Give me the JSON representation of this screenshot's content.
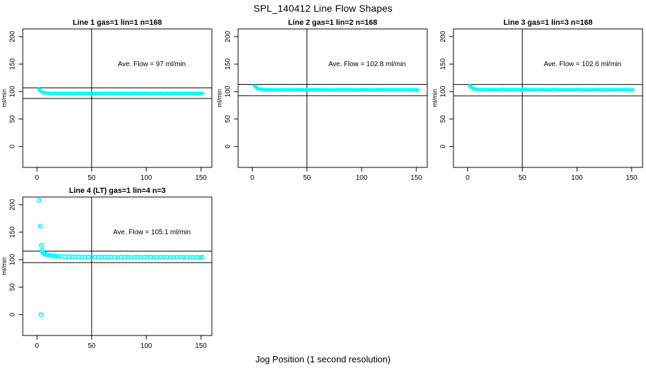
{
  "title": "SPL_140412  Line Flow Shapes",
  "xlabel": "Jog Position (1 second resolution)",
  "colors": {
    "points": "#00ffff",
    "axis": "#000000",
    "background": "#ffffff"
  },
  "chart_data": {
    "type": "scatter",
    "grid": "off",
    "legend": "none",
    "panels": [
      {
        "title": "Line 1 gas=1 lin=1 n=168",
        "annotation": "Ave. Flow =  97  ml/min",
        "ave_flow": 97,
        "ylabel": "ml/min",
        "xticks": [
          0,
          50,
          100,
          150
        ],
        "yticks": [
          0,
          50,
          100,
          150,
          200
        ],
        "xlim": [
          -13,
          160
        ],
        "ylim": [
          -38,
          214
        ],
        "vline": 50,
        "hlines": [
          87.3,
          106.7
        ],
        "style": "band",
        "x": [
          2,
          5,
          8,
          11,
          14,
          17,
          20,
          23,
          26,
          29,
          32,
          35,
          38,
          41,
          44,
          47,
          50,
          53,
          56,
          59,
          62,
          65,
          68,
          71,
          74,
          77,
          80,
          83,
          86,
          89,
          92,
          95,
          98,
          101,
          104,
          107,
          110,
          113,
          116,
          119,
          122,
          125,
          128,
          131,
          134,
          137,
          140,
          143,
          146,
          149,
          151
        ],
        "y": [
          103.5,
          98.6,
          97.3,
          96.9,
          96.6,
          97.0,
          96.5,
          96.8,
          96.4,
          96.9,
          96.6,
          96.3,
          96.8,
          96.5,
          96.9,
          96.4,
          96.7,
          96.5,
          96.8,
          96.3,
          96.6,
          96.9,
          96.5,
          96.7,
          96.4,
          96.8,
          96.6,
          96.3,
          96.7,
          96.5,
          96.9,
          96.4,
          96.6,
          96.8,
          96.5,
          96.3,
          96.7,
          96.9,
          96.4,
          96.6,
          96.5,
          96.8,
          96.3,
          96.7,
          96.5,
          96.9,
          96.6,
          96.4,
          96.8,
          96.5,
          96.6
        ]
      },
      {
        "title": "Line 2 gas=1 lin=2 n=168",
        "annotation": "Ave. Flow =  102.8  ml/min",
        "ave_flow": 102.8,
        "ylabel": "ml/min",
        "xticks": [
          0,
          50,
          100,
          150
        ],
        "yticks": [
          0,
          50,
          100,
          150,
          200
        ],
        "xlim": [
          -13,
          160
        ],
        "ylim": [
          -38,
          214
        ],
        "vline": 50,
        "hlines": [
          92.5,
          113.1
        ],
        "style": "band",
        "x": [
          2,
          5,
          8,
          11,
          14,
          17,
          20,
          23,
          26,
          29,
          32,
          35,
          38,
          41,
          44,
          47,
          50,
          53,
          56,
          59,
          62,
          65,
          68,
          71,
          74,
          77,
          80,
          83,
          86,
          89,
          92,
          95,
          98,
          101,
          104,
          107,
          110,
          113,
          116,
          119,
          122,
          125,
          128,
          131,
          134,
          137,
          140,
          143,
          146,
          149,
          151
        ],
        "y": [
          110.0,
          105.0,
          103.8,
          103.4,
          103.1,
          103.3,
          102.9,
          103.2,
          102.8,
          103.1,
          102.9,
          103.3,
          102.8,
          103.0,
          103.2,
          102.7,
          103.1,
          102.9,
          103.2,
          102.8,
          103.0,
          103.3,
          102.9,
          103.1,
          102.7,
          103.2,
          102.9,
          103.0,
          102.8,
          103.2,
          103.0,
          102.7,
          103.1,
          102.9,
          103.2,
          102.8,
          103.0,
          102.9,
          103.3,
          102.8,
          103.1,
          102.9,
          103.0,
          102.7,
          103.2,
          102.9,
          103.1,
          102.8,
          103.0,
          102.9,
          102.9
        ]
      },
      {
        "title": "Line 3 gas=1 lin=3 n=168",
        "annotation": "Ave. Flow =  102.6  ml/min",
        "ave_flow": 102.6,
        "ylabel": "ml/min",
        "xticks": [
          0,
          50,
          100,
          150
        ],
        "yticks": [
          0,
          50,
          100,
          150,
          200
        ],
        "xlim": [
          -13,
          160
        ],
        "ylim": [
          -38,
          214
        ],
        "vline": 50,
        "hlines": [
          92.3,
          112.9
        ],
        "style": "band",
        "x": [
          2,
          5,
          8,
          11,
          14,
          17,
          20,
          23,
          26,
          29,
          32,
          35,
          38,
          41,
          44,
          47,
          50,
          53,
          56,
          59,
          62,
          65,
          68,
          71,
          74,
          77,
          80,
          83,
          86,
          89,
          92,
          95,
          98,
          101,
          104,
          107,
          110,
          113,
          116,
          119,
          122,
          125,
          128,
          131,
          134,
          137,
          140,
          143,
          146,
          149,
          151
        ],
        "y": [
          110.5,
          105.2,
          103.9,
          103.3,
          103.0,
          103.4,
          102.8,
          103.6,
          102.9,
          103.2,
          104.0,
          102.8,
          103.1,
          103.5,
          102.9,
          103.2,
          102.8,
          104.1,
          103.0,
          102.9,
          103.3,
          102.8,
          103.6,
          103.0,
          102.9,
          103.2,
          104.0,
          102.8,
          103.1,
          102.9,
          103.4,
          102.8,
          103.2,
          103.9,
          102.9,
          103.1,
          102.8,
          103.3,
          103.0,
          104.0,
          102.9,
          103.1,
          102.8,
          103.4,
          103.0,
          102.9,
          103.2,
          103.8,
          102.9,
          103.1,
          103.0
        ]
      },
      {
        "title": "Line 4 (LT) gas=1 lin=4 n=3",
        "annotation": "Ave. Flow =  105.1  ml/min",
        "ave_flow": 105.1,
        "ylabel": "ml/min",
        "xticks": [
          0,
          50,
          100,
          150
        ],
        "yticks": [
          0,
          50,
          100,
          150,
          200
        ],
        "xlim": [
          -13,
          160
        ],
        "ylim": [
          -38,
          214
        ],
        "vline": 50,
        "hlines": [
          94.6,
          115.6
        ],
        "style": "rings",
        "x": [
          2,
          3,
          3.5,
          4,
          4.6,
          5.3,
          6,
          7,
          8,
          9,
          10,
          12,
          14,
          16,
          18,
          20,
          23,
          26,
          29,
          32,
          35,
          38,
          41,
          44,
          47,
          50,
          53,
          56,
          59,
          62,
          65,
          68,
          71,
          74,
          77,
          80,
          83,
          86,
          89,
          92,
          95,
          98,
          101,
          104,
          107,
          110,
          113,
          116,
          119,
          122,
          125,
          128,
          131,
          134,
          137,
          140,
          143,
          146,
          149,
          151
        ],
        "y": [
          208,
          161,
          0,
          126,
          117,
          113,
          111.5,
          110.5,
          109.5,
          109,
          108.5,
          107.5,
          107,
          106.5,
          106.2,
          106,
          105.6,
          105.4,
          105.2,
          105.3,
          104.9,
          105.1,
          104.7,
          105.0,
          104.6,
          104.9,
          104.5,
          104.8,
          104.4,
          104.9,
          104.3,
          104.7,
          104.5,
          104.2,
          104.8,
          104.4,
          104.6,
          104.1,
          104.5,
          104.7,
          104.2,
          104.6,
          104.3,
          104.8,
          104.2,
          104.5,
          104.1,
          104.6,
          104.4,
          104.0,
          104.5,
          104.2,
          104.7,
          104.3,
          104.1,
          104.6,
          104.2,
          104.4,
          104.0,
          104.3
        ]
      }
    ]
  }
}
